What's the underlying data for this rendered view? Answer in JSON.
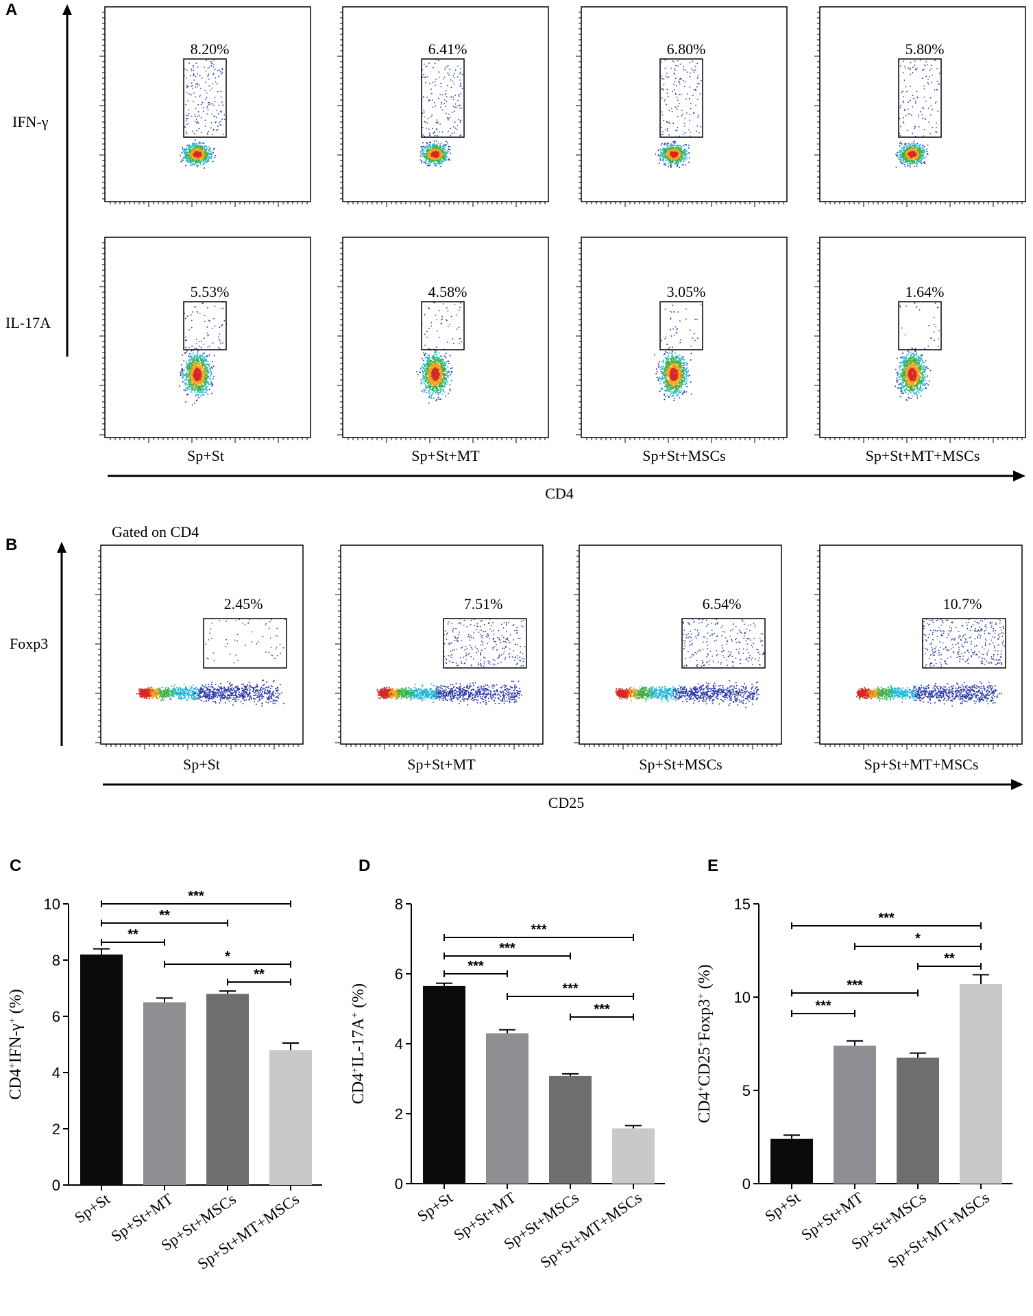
{
  "panel_letters": {
    "a": "A",
    "b": "B",
    "c": "C",
    "d": "D",
    "e": "E"
  },
  "groups": [
    "Sp+St",
    "Sp+St+MT",
    "Sp+St+MSCs",
    "Sp+St+MT+MSCs"
  ],
  "flow_a": {
    "x_axis_label": "CD4",
    "rows": [
      {
        "label": "IFN-γ",
        "percents": [
          "8.20%",
          "6.41%",
          "6.80%",
          "5.80%"
        ]
      },
      {
        "label": "IL-17A",
        "percents": [
          "5.53%",
          "4.58%",
          "3.05%",
          "1.64%"
        ]
      }
    ]
  },
  "flow_b": {
    "gate_note": "Gated on CD4",
    "y_axis_label": "Foxp3",
    "x_axis_label": "CD25",
    "percents": [
      "2.45%",
      "7.51%",
      "6.54%",
      "10.7%"
    ]
  },
  "colors": {
    "bar_1": "#0b0b0b",
    "bar_2": "#8d8f92",
    "bar_3": "#6d6e70",
    "bar_4": "#c8c9cb"
  },
  "chart_data": [
    {
      "panel": "C",
      "type": "bar",
      "categories": [
        "Sp+St",
        "Sp+St+MT",
        "Sp+St+MSCs",
        "Sp+St+MT+MSCs"
      ],
      "values": [
        8.2,
        6.5,
        6.8,
        4.8
      ],
      "errors": [
        0.2,
        0.15,
        0.1,
        0.25
      ],
      "ylabel_main": "CD4",
      "ylabel_sup1": "+",
      "ylabel_mid": "IFN-γ",
      "ylabel_sup2": "+",
      "ylabel_unit": " (%)",
      "ylim": [
        0,
        10
      ],
      "yticks": [
        "0",
        "2",
        "4",
        "6",
        "8",
        "10"
      ],
      "ytick_values": [
        0,
        2,
        4,
        6,
        8,
        10
      ],
      "significance": [
        {
          "from": 0,
          "to": 3,
          "label": "***"
        },
        {
          "from": 0,
          "to": 2,
          "label": "**"
        },
        {
          "from": 0,
          "to": 1,
          "label": "**"
        },
        {
          "from": 1,
          "to": 3,
          "label": "*"
        },
        {
          "from": 2,
          "to": 3,
          "label": "**"
        }
      ]
    },
    {
      "panel": "D",
      "type": "bar",
      "categories": [
        "Sp+St",
        "Sp+St+MT",
        "Sp+St+MSCs",
        "Sp+St+MT+MSCs"
      ],
      "values": [
        5.65,
        4.3,
        3.08,
        1.58
      ],
      "errors": [
        0.08,
        0.1,
        0.06,
        0.08
      ],
      "ylabel_main": "CD4",
      "ylabel_sup1": "+",
      "ylabel_mid": "IL-17A",
      "ylabel_sup2": "+",
      "ylabel_unit": " (%)",
      "ylim": [
        0,
        8
      ],
      "yticks": [
        "0",
        "2",
        "4",
        "6",
        "8"
      ],
      "ytick_values": [
        0,
        2,
        4,
        6,
        8
      ],
      "significance": [
        {
          "from": 0,
          "to": 3,
          "label": "***"
        },
        {
          "from": 0,
          "to": 2,
          "label": "***"
        },
        {
          "from": 0,
          "to": 1,
          "label": "***"
        },
        {
          "from": 1,
          "to": 3,
          "label": "***"
        },
        {
          "from": 2,
          "to": 3,
          "label": "***"
        }
      ]
    },
    {
      "panel": "E",
      "type": "bar",
      "categories": [
        "Sp+St",
        "Sp+St+MT",
        "Sp+St+MSCs",
        "Sp+St+MT+MSCs"
      ],
      "values": [
        2.4,
        7.4,
        6.75,
        10.7
      ],
      "errors": [
        0.2,
        0.25,
        0.25,
        0.5
      ],
      "ylabel_main": "CD4",
      "ylabel_sup1": "+",
      "ylabel_mid": "CD25",
      "ylabel_sup2": "+",
      "ylabel_mid2": "Foxp3",
      "ylabel_sup3": "+",
      "ylabel_unit": " (%)",
      "ylim": [
        0,
        15
      ],
      "yticks": [
        "0",
        "5",
        "10",
        "15"
      ],
      "ytick_values": [
        0,
        5,
        10,
        15
      ],
      "significance": [
        {
          "from": 0,
          "to": 3,
          "label": "***"
        },
        {
          "from": 1,
          "to": 3,
          "label": "*"
        },
        {
          "from": 2,
          "to": 3,
          "label": "**"
        },
        {
          "from": 0,
          "to": 2,
          "label": "***"
        },
        {
          "from": 0,
          "to": 1,
          "label": "***"
        }
      ]
    }
  ]
}
